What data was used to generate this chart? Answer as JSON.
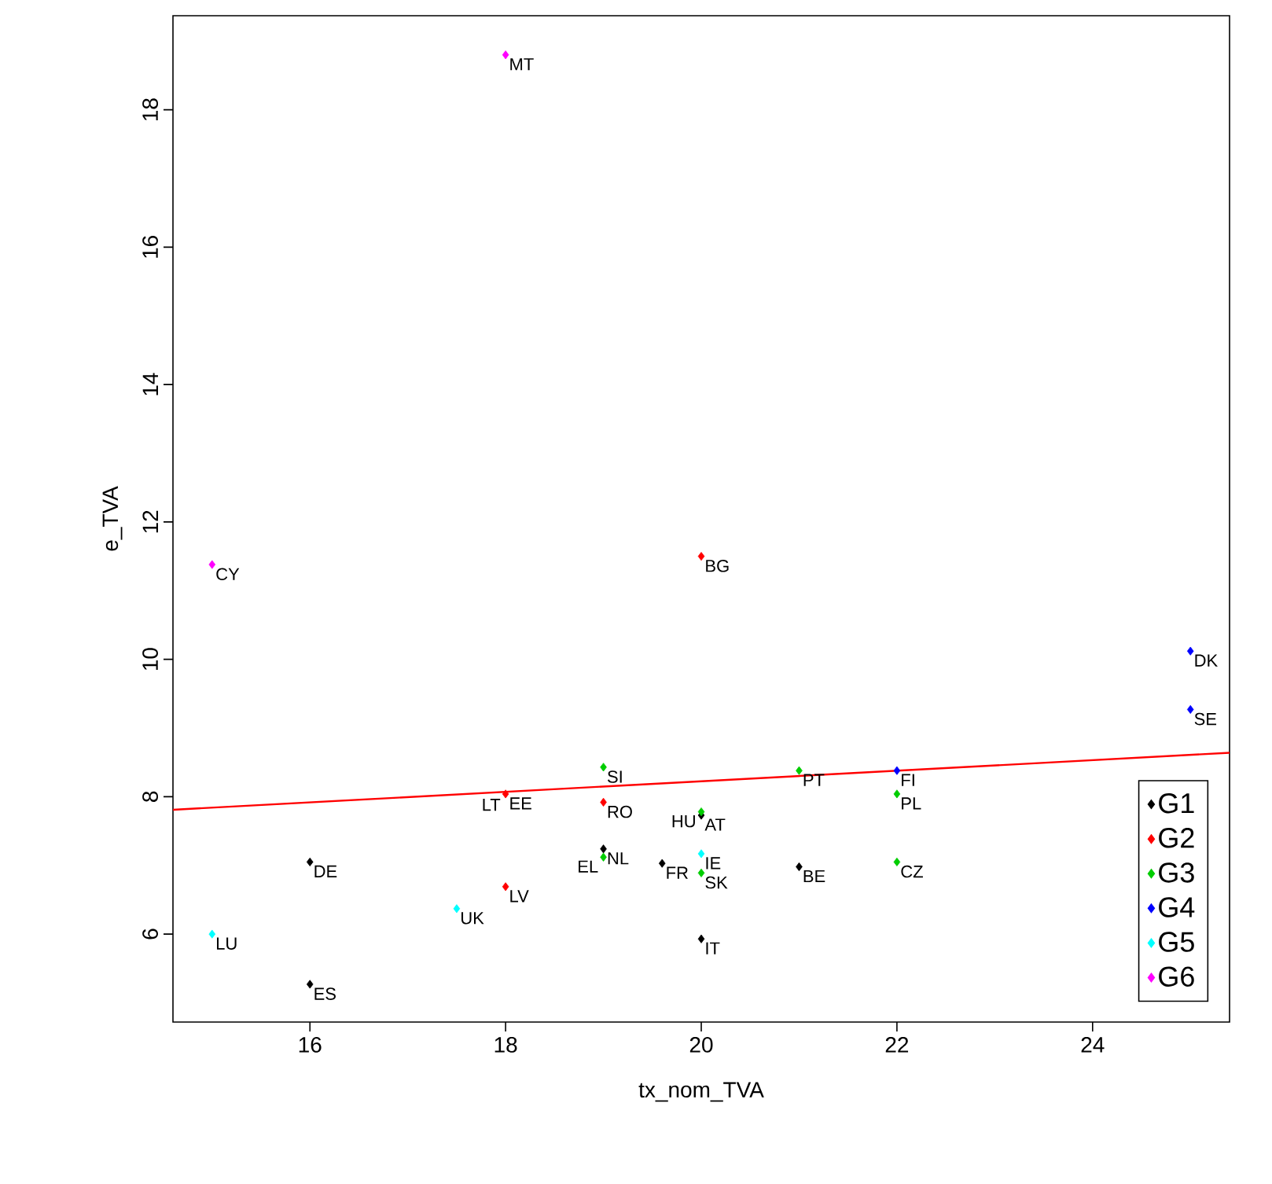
{
  "chart_data": {
    "type": "scatter",
    "xlabel": "tx_nom_TVA",
    "ylabel": "e_TVA",
    "xlim": [
      14.6,
      25.4
    ],
    "ylim": [
      4.72,
      19.37
    ],
    "xticks": [
      16,
      18,
      20,
      22,
      24
    ],
    "yticks": [
      6,
      8,
      10,
      12,
      14,
      16,
      18
    ],
    "marker": "diamond",
    "grid": false,
    "legend": "bottom right",
    "series": [
      {
        "name": "G1",
        "color": "#000000",
        "x": [
          16,
          16,
          19,
          19.6,
          20,
          21,
          20
        ],
        "values": [
          7.05,
          5.27,
          7.24,
          7.03,
          7.73,
          6.98,
          5.93
        ]
      },
      {
        "name": "G2",
        "color": "#ff0000",
        "x": [
          20,
          18,
          19,
          18
        ],
        "values": [
          11.5,
          8.04,
          7.92,
          6.69
        ]
      },
      {
        "name": "G3",
        "color": "#00cd00",
        "x": [
          19,
          21,
          22,
          20,
          19,
          20,
          22
        ],
        "values": [
          8.43,
          8.38,
          8.04,
          7.78,
          7.12,
          6.89,
          7.05
        ]
      },
      {
        "name": "G4",
        "color": "#0000ff",
        "x": [
          22,
          25,
          25
        ],
        "values": [
          8.38,
          10.12,
          9.27
        ]
      },
      {
        "name": "G5",
        "color": "#00ffff",
        "x": [
          15,
          17.5,
          20
        ],
        "values": [
          6.0,
          6.37,
          7.17
        ]
      },
      {
        "name": "G6",
        "color": "#ff00ff",
        "x": [
          15,
          18
        ],
        "values": [
          11.38,
          18.8
        ]
      },
      {
        "type": "line",
        "color": "#ff0000",
        "marker": "none",
        "x": [
          14.6,
          25.4
        ],
        "values": [
          7.81,
          8.64
        ]
      }
    ],
    "annotations": [
      {
        "text": "DE",
        "x": 16,
        "y": 7.05
      },
      {
        "text": "ES",
        "x": 16,
        "y": 5.27
      },
      {
        "text": "NL",
        "x": 19,
        "y": 7.24
      },
      {
        "text": "FR",
        "x": 19.6,
        "y": 7.03
      },
      {
        "text": "AT",
        "x": 20,
        "y": 7.73
      },
      {
        "text": "BE",
        "x": 21,
        "y": 6.98
      },
      {
        "text": "IT",
        "x": 20,
        "y": 5.93
      },
      {
        "text": "BG",
        "x": 20,
        "y": 11.5
      },
      {
        "text": "EE",
        "x": 18,
        "y": 8.04
      },
      {
        "text": "LT",
        "x": 18,
        "y": 8.02
      },
      {
        "text": "RO",
        "x": 19,
        "y": 7.92
      },
      {
        "text": "LV",
        "x": 18,
        "y": 6.69
      },
      {
        "text": "SI",
        "x": 19,
        "y": 8.43
      },
      {
        "text": "PT",
        "x": 21,
        "y": 8.38
      },
      {
        "text": "PL",
        "x": 22,
        "y": 8.04
      },
      {
        "text": "HU",
        "x": 20,
        "y": 7.78
      },
      {
        "text": "EL",
        "x": 19,
        "y": 7.12
      },
      {
        "text": "SK",
        "x": 20,
        "y": 6.89
      },
      {
        "text": "CZ",
        "x": 22,
        "y": 7.05
      },
      {
        "text": "FI",
        "x": 22,
        "y": 8.38
      },
      {
        "text": "DK",
        "x": 25,
        "y": 10.12
      },
      {
        "text": "SE",
        "x": 25,
        "y": 9.27
      },
      {
        "text": "LU",
        "x": 15,
        "y": 6.0
      },
      {
        "text": "UK",
        "x": 17.5,
        "y": 6.37
      },
      {
        "text": "IE",
        "x": 20,
        "y": 7.17
      },
      {
        "text": "CY",
        "x": 15,
        "y": 11.38
      },
      {
        "text": "MT",
        "x": 18,
        "y": 18.8
      }
    ]
  }
}
